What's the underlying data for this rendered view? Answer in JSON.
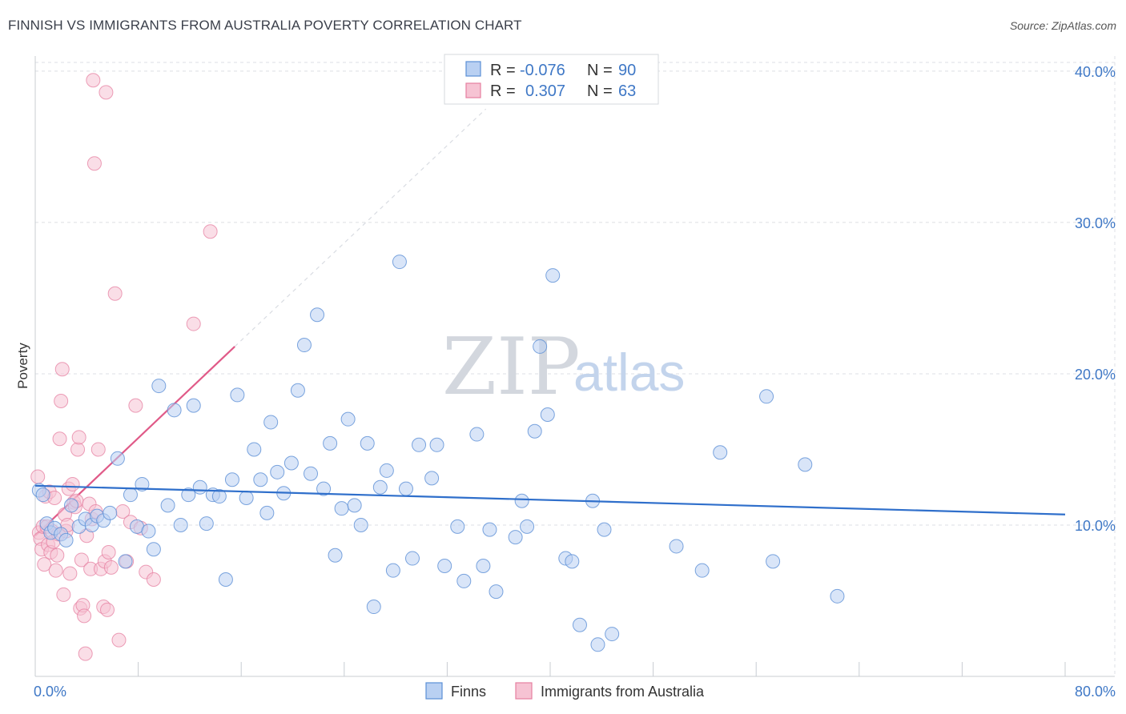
{
  "title": "FINNISH VS IMMIGRANTS FROM AUSTRALIA POVERTY CORRELATION CHART",
  "source": "Source: ZipAtlas.com",
  "colors": {
    "blue": "#5b8fd6",
    "blue_fill": "#b9d0f2",
    "pink": "#e57fa0",
    "pink_fill": "#f6c3d3",
    "blue_line": "#2f6fcb",
    "pink_line": "#e05a88"
  },
  "chart_data": {
    "type": "scatter",
    "ylabel": "Poverty",
    "xlim": [
      0,
      80
    ],
    "ylim": [
      0,
      41
    ],
    "x_ticks": [
      {
        "value": 0,
        "label": "0.0%"
      },
      {
        "value": 80,
        "label": "80.0%"
      }
    ],
    "y_ticks": [
      {
        "value": 10,
        "label": "10.0%"
      },
      {
        "value": 20,
        "label": "20.0%"
      },
      {
        "value": 30,
        "label": "30.0%"
      },
      {
        "value": 40,
        "label": "40.0%"
      }
    ],
    "grid": true,
    "legend": {
      "placement": "top-center",
      "rows": [
        {
          "r_label": "R =",
          "r_value": "-0.076",
          "n_label": "N =",
          "n_value": "90"
        },
        {
          "r_label": "R =",
          "r_value": "0.307",
          "n_label": "N =",
          "n_value": "63"
        }
      ]
    },
    "bottom_legend": [
      "Finns",
      "Immigrants from Australia"
    ],
    "watermark": {
      "zip": "ZIP",
      "atlas": "atlas"
    },
    "series": [
      {
        "name": "Finns",
        "trend": {
          "x": [
            0,
            80
          ],
          "y": [
            12.6,
            10.7
          ]
        },
        "points": [
          [
            0.3,
            12.3
          ],
          [
            0.6,
            12.0
          ],
          [
            0.9,
            10.1
          ],
          [
            1.2,
            9.5
          ],
          [
            1.5,
            9.8
          ],
          [
            2.0,
            9.4
          ],
          [
            2.4,
            9.0
          ],
          [
            2.8,
            11.3
          ],
          [
            3.4,
            9.9
          ],
          [
            3.9,
            10.4
          ],
          [
            4.4,
            10.0
          ],
          [
            4.8,
            10.6
          ],
          [
            5.3,
            10.3
          ],
          [
            5.8,
            10.8
          ],
          [
            6.4,
            14.4
          ],
          [
            7.0,
            7.6
          ],
          [
            7.4,
            12.0
          ],
          [
            7.9,
            9.9
          ],
          [
            8.3,
            12.7
          ],
          [
            8.8,
            9.6
          ],
          [
            9.2,
            8.4
          ],
          [
            9.6,
            19.2
          ],
          [
            10.3,
            11.3
          ],
          [
            10.8,
            17.6
          ],
          [
            11.3,
            10.0
          ],
          [
            11.9,
            12.0
          ],
          [
            12.3,
            17.9
          ],
          [
            12.8,
            12.5
          ],
          [
            13.3,
            10.1
          ],
          [
            13.8,
            12.0
          ],
          [
            14.3,
            11.9
          ],
          [
            14.8,
            6.4
          ],
          [
            15.3,
            13.0
          ],
          [
            15.7,
            18.6
          ],
          [
            16.4,
            11.8
          ],
          [
            17.0,
            15.0
          ],
          [
            17.5,
            13.0
          ],
          [
            18.0,
            10.8
          ],
          [
            18.3,
            16.8
          ],
          [
            18.8,
            13.5
          ],
          [
            19.3,
            12.1
          ],
          [
            19.9,
            14.1
          ],
          [
            20.4,
            18.9
          ],
          [
            20.9,
            21.9
          ],
          [
            21.4,
            13.4
          ],
          [
            21.9,
            23.9
          ],
          [
            22.4,
            12.4
          ],
          [
            22.9,
            15.4
          ],
          [
            23.3,
            8.0
          ],
          [
            23.8,
            11.1
          ],
          [
            24.3,
            17.0
          ],
          [
            24.8,
            11.3
          ],
          [
            25.3,
            10.0
          ],
          [
            25.8,
            15.4
          ],
          [
            26.3,
            4.6
          ],
          [
            26.8,
            12.5
          ],
          [
            27.3,
            13.6
          ],
          [
            27.8,
            7.0
          ],
          [
            28.3,
            27.4
          ],
          [
            28.8,
            12.4
          ],
          [
            29.3,
            7.8
          ],
          [
            29.8,
            15.3
          ],
          [
            30.8,
            13.1
          ],
          [
            31.2,
            15.3
          ],
          [
            31.8,
            7.3
          ],
          [
            32.8,
            9.9
          ],
          [
            33.3,
            6.3
          ],
          [
            34.3,
            16.0
          ],
          [
            34.8,
            7.3
          ],
          [
            35.3,
            9.7
          ],
          [
            35.8,
            5.6
          ],
          [
            37.3,
            9.2
          ],
          [
            37.8,
            11.6
          ],
          [
            38.2,
            9.9
          ],
          [
            38.8,
            16.2
          ],
          [
            39.2,
            21.8
          ],
          [
            39.8,
            17.3
          ],
          [
            40.2,
            26.5
          ],
          [
            41.2,
            7.8
          ],
          [
            41.7,
            7.6
          ],
          [
            42.3,
            3.4
          ],
          [
            43.3,
            11.6
          ],
          [
            43.7,
            2.1
          ],
          [
            44.2,
            9.7
          ],
          [
            44.8,
            2.8
          ],
          [
            49.8,
            8.6
          ],
          [
            51.8,
            7.0
          ],
          [
            53.2,
            14.8
          ],
          [
            56.8,
            18.5
          ],
          [
            57.3,
            7.6
          ],
          [
            59.8,
            14.0
          ],
          [
            62.3,
            5.3
          ]
        ]
      },
      {
        "name": "Immigrants from Australia",
        "trend": {
          "x": [
            0,
            15.5
          ],
          "y": [
            9.3,
            21.8
          ]
        },
        "trend_extension": {
          "x": [
            15.5,
            35
          ],
          "y": [
            21.8,
            37.5
          ]
        },
        "points": [
          [
            0.2,
            13.2
          ],
          [
            0.3,
            9.5
          ],
          [
            0.4,
            9.1
          ],
          [
            0.5,
            8.4
          ],
          [
            0.6,
            9.9
          ],
          [
            0.7,
            7.4
          ],
          [
            0.8,
            11.9
          ],
          [
            0.9,
            9.9
          ],
          [
            1.0,
            8.7
          ],
          [
            1.1,
            12.2
          ],
          [
            1.2,
            8.2
          ],
          [
            1.3,
            9.6
          ],
          [
            1.4,
            8.9
          ],
          [
            1.5,
            11.8
          ],
          [
            1.6,
            7.0
          ],
          [
            1.7,
            8.0
          ],
          [
            1.8,
            9.4
          ],
          [
            1.9,
            15.7
          ],
          [
            2.0,
            18.2
          ],
          [
            2.1,
            20.3
          ],
          [
            2.2,
            5.4
          ],
          [
            2.3,
            10.7
          ],
          [
            2.4,
            9.6
          ],
          [
            2.5,
            10.0
          ],
          [
            2.6,
            12.4
          ],
          [
            2.7,
            6.8
          ],
          [
            2.9,
            12.7
          ],
          [
            3.0,
            11.5
          ],
          [
            3.1,
            11.2
          ],
          [
            3.2,
            11.6
          ],
          [
            3.3,
            15.0
          ],
          [
            3.4,
            15.8
          ],
          [
            3.5,
            4.5
          ],
          [
            3.6,
            7.7
          ],
          [
            3.7,
            4.7
          ],
          [
            3.8,
            4.0
          ],
          [
            3.9,
            1.5
          ],
          [
            4.0,
            9.3
          ],
          [
            4.2,
            11.4
          ],
          [
            4.3,
            7.1
          ],
          [
            4.4,
            10.4
          ],
          [
            4.5,
            39.4
          ],
          [
            4.6,
            33.9
          ],
          [
            4.7,
            10.9
          ],
          [
            4.9,
            15.0
          ],
          [
            5.1,
            7.1
          ],
          [
            5.3,
            4.6
          ],
          [
            5.4,
            7.6
          ],
          [
            5.5,
            38.6
          ],
          [
            5.6,
            4.4
          ],
          [
            5.7,
            8.2
          ],
          [
            5.9,
            7.2
          ],
          [
            6.2,
            25.3
          ],
          [
            6.5,
            2.4
          ],
          [
            6.8,
            10.9
          ],
          [
            7.1,
            7.6
          ],
          [
            7.4,
            10.2
          ],
          [
            7.8,
            17.9
          ],
          [
            8.2,
            9.8
          ],
          [
            8.6,
            6.9
          ],
          [
            9.2,
            6.4
          ],
          [
            12.3,
            23.3
          ],
          [
            13.6,
            29.4
          ]
        ]
      }
    ]
  }
}
